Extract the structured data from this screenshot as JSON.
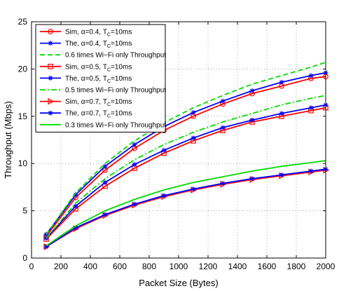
{
  "chart_data": {
    "type": "line",
    "xlabel": "Packet Size (Bytes)",
    "ylabel": "Throughput (Mbps)",
    "xlim": [
      0,
      2000
    ],
    "ylim": [
      0,
      25
    ],
    "xticks": [
      0,
      200,
      400,
      600,
      800,
      1000,
      1200,
      1400,
      1600,
      1800,
      2000
    ],
    "yticks": [
      0,
      5,
      10,
      15,
      20,
      25
    ],
    "grid": true,
    "legend_position": "top-left",
    "x": [
      100,
      300,
      500,
      700,
      900,
      1100,
      1300,
      1500,
      1700,
      1900,
      2000
    ],
    "series": [
      {
        "name": "Sim, α=0.4, T_C=10ms",
        "legend_main": "Sim, α=0.4, T",
        "legend_sub": "C",
        "legend_tail": "=10ms",
        "color": "#ff0000",
        "dash": "solid",
        "marker": "circle",
        "values": [
          2.3,
          6.4,
          9.3,
          11.6,
          13.5,
          15.0,
          16.3,
          17.4,
          18.2,
          19.0,
          19.2
        ]
      },
      {
        "name": "The, α=0.4, T_C=10ms",
        "legend_main": "The, α=0.4, T",
        "legend_sub": "C",
        "legend_tail": "=10ms",
        "color": "#0000ff",
        "dash": "solid",
        "marker": "star",
        "values": [
          2.5,
          6.7,
          9.7,
          12.0,
          13.9,
          15.4,
          16.6,
          17.7,
          18.6,
          19.3,
          19.6
        ]
      },
      {
        "name": "0.6 times Wi−Fi only Throughput",
        "legend_main": "0.6 times Wi−Fi only Throughput",
        "legend_sub": "",
        "legend_tail": "",
        "color": "#00dd00",
        "dash": "dashed",
        "marker": "none",
        "values": [
          2.5,
          6.9,
          10.0,
          12.4,
          14.3,
          15.9,
          17.2,
          18.4,
          19.3,
          20.2,
          20.7
        ]
      },
      {
        "name": "Sim, α=0.5, T_C=10ms",
        "legend_main": "Sim, α=0.5, T",
        "legend_sub": "C",
        "legend_tail": "=10ms",
        "color": "#ff0000",
        "dash": "solid",
        "marker": "square",
        "values": [
          2.0,
          5.2,
          7.6,
          9.5,
          11.1,
          12.4,
          13.5,
          14.4,
          15.0,
          15.6,
          15.9
        ]
      },
      {
        "name": "The, α=0.5, T_C=10ms",
        "legend_main": "The, α=0.5, T",
        "legend_sub": "C",
        "legend_tail": "=10ms",
        "color": "#0000ff",
        "dash": "solid",
        "marker": "star",
        "values": [
          2.1,
          5.5,
          8.0,
          9.9,
          11.4,
          12.7,
          13.8,
          14.6,
          15.3,
          15.9,
          16.2
        ]
      },
      {
        "name": "0.5 times Wi−Fi only Throughput",
        "legend_main": "0.5 times Wi−Fi only Throughput",
        "legend_sub": "",
        "legend_tail": "",
        "color": "#00dd00",
        "dash": "dashdot",
        "marker": "none",
        "values": [
          2.1,
          5.8,
          8.4,
          10.4,
          12.0,
          13.3,
          14.4,
          15.3,
          16.2,
          16.9,
          17.2
        ]
      },
      {
        "name": "Sim, α=0.7, T_C=10ms",
        "legend_main": "Sim, α=0.7, T",
        "legend_sub": "C",
        "legend_tail": "=10ms",
        "color": "#ff0000",
        "dash": "solid",
        "marker": "triangle-right",
        "values": [
          1.2,
          3.1,
          4.5,
          5.6,
          6.5,
          7.2,
          7.8,
          8.3,
          8.7,
          9.1,
          9.3
        ]
      },
      {
        "name": "The, α=0.7, T_C=10ms",
        "legend_main": "The, α=0.7, T",
        "legend_sub": "C",
        "legend_tail": "=10ms",
        "color": "#0000ff",
        "dash": "solid",
        "marker": "star",
        "values": [
          1.2,
          3.2,
          4.6,
          5.7,
          6.6,
          7.3,
          7.9,
          8.4,
          8.8,
          9.2,
          9.4
        ]
      },
      {
        "name": "0.3 times Wi−Fi only Throughput",
        "legend_main": "0.3 times Wi−Fi only Throughput",
        "legend_sub": "",
        "legend_tail": "",
        "color": "#00dd00",
        "dash": "solid",
        "marker": "none",
        "values": [
          1.3,
          3.4,
          5.0,
          6.2,
          7.2,
          8.0,
          8.6,
          9.2,
          9.7,
          10.1,
          10.3
        ]
      }
    ]
  }
}
